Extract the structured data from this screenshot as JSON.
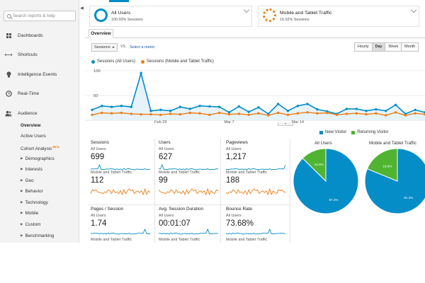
{
  "colors": {
    "all_users": "#058dc7",
    "mobile": "#ed7e17",
    "new_visitor": "#058dc7",
    "returning_visitor": "#50b432"
  },
  "sidebar": {
    "collapse_icon": "◀",
    "search_placeholder": "Search reports & help",
    "items": [
      {
        "label": "Dashboards",
        "icon": "dashboard-icon"
      },
      {
        "label": "Shortcuts",
        "icon": "shortcut-arrow-icon"
      },
      {
        "label": "Intelligence Events",
        "icon": "lightbulb-icon"
      },
      {
        "label": "Real-Time",
        "icon": "clock-icon"
      },
      {
        "label": "Audience",
        "icon": "people-icon"
      }
    ],
    "sub_items": [
      {
        "label": "Overview"
      },
      {
        "label": "Active Users"
      },
      {
        "label": "Cohort Analysis",
        "badge": "BETA"
      },
      {
        "label": "Demographics"
      },
      {
        "label": "Interests"
      },
      {
        "label": "Geo"
      },
      {
        "label": "Behavior"
      },
      {
        "label": "Technology"
      },
      {
        "label": "Mobile"
      },
      {
        "label": "Custom"
      },
      {
        "label": "Benchmarking"
      }
    ]
  },
  "segments": [
    {
      "title": "All Users",
      "subtitle": "100.00% Sessions"
    },
    {
      "title": "Mobile and Tablet Traffic",
      "subtitle": "16.02% Sessions"
    }
  ],
  "tabs": {
    "overview": "Overview"
  },
  "controls": {
    "metric": "Sessions",
    "vs": "VS.",
    "select_metric": "Select a metric",
    "granularity": [
      "Hourly",
      "Day",
      "Week",
      "Month"
    ],
    "active_granularity": "Day"
  },
  "chart_data": [
    {
      "type": "line",
      "x_tick_labels": [
        "Feb 29",
        "Mar 7",
        "Mar 14"
      ],
      "ylim": [
        0,
        100
      ],
      "y_ticks": [
        "100",
        "50"
      ],
      "series": [
        {
          "name": "Sessions (All Users)",
          "values": [
            21,
            29,
            27,
            29,
            27,
            95,
            19,
            21,
            19,
            27,
            23,
            29,
            28,
            27,
            16,
            28,
            17,
            26,
            13,
            33,
            19,
            29,
            33,
            22,
            18,
            13,
            23,
            23,
            19,
            22,
            19,
            31,
            13,
            21,
            16
          ]
        },
        {
          "name": "Sessions (Mobile and Tablet Traffic)",
          "values": [
            11,
            15,
            14,
            15,
            13,
            12,
            12,
            11,
            13,
            12,
            15,
            14,
            11,
            15,
            12,
            13,
            11,
            14,
            10,
            15,
            11,
            14,
            16,
            14,
            15,
            11,
            13,
            14,
            12,
            14,
            10,
            16,
            10,
            14,
            12
          ]
        }
      ]
    },
    {
      "type": "pie",
      "title": "All Users",
      "slices": [
        {
          "name": "New Visitor",
          "value": 87.4
        },
        {
          "name": "Returning Visitor",
          "value": 12.6
        }
      ]
    },
    {
      "type": "pie",
      "title": "Mobile and Tablet Traffic",
      "slices": [
        {
          "name": "New Visitor",
          "value": 81.2
        },
        {
          "name": "Returning Visitor",
          "value": 18.8
        }
      ]
    }
  ],
  "tile_labels": {
    "seg1": "All Users",
    "seg2": "Mobile and Tablet Traffic"
  },
  "tiles": [
    {
      "name": "Sessions",
      "value1": "699",
      "value2": "112"
    },
    {
      "name": "Users",
      "value1": "627",
      "value2": "99"
    },
    {
      "name": "Pageviews",
      "value1": "1,217",
      "value2": "188"
    },
    {
      "name": "Pages / Session",
      "value1": "1.74"
    },
    {
      "name": "Avg. Session Duration",
      "value1": "00:01:07"
    },
    {
      "name": "Bounce Rate",
      "value1": "73.68%"
    }
  ],
  "pie_legend": {
    "new": "New Visitor",
    "returning": "Returning Visitor"
  },
  "pie_labels": [
    {
      "new": "87.4%",
      "returning": "12.6%"
    },
    {
      "new": "81.2%",
      "returning": "18.8%"
    }
  ]
}
